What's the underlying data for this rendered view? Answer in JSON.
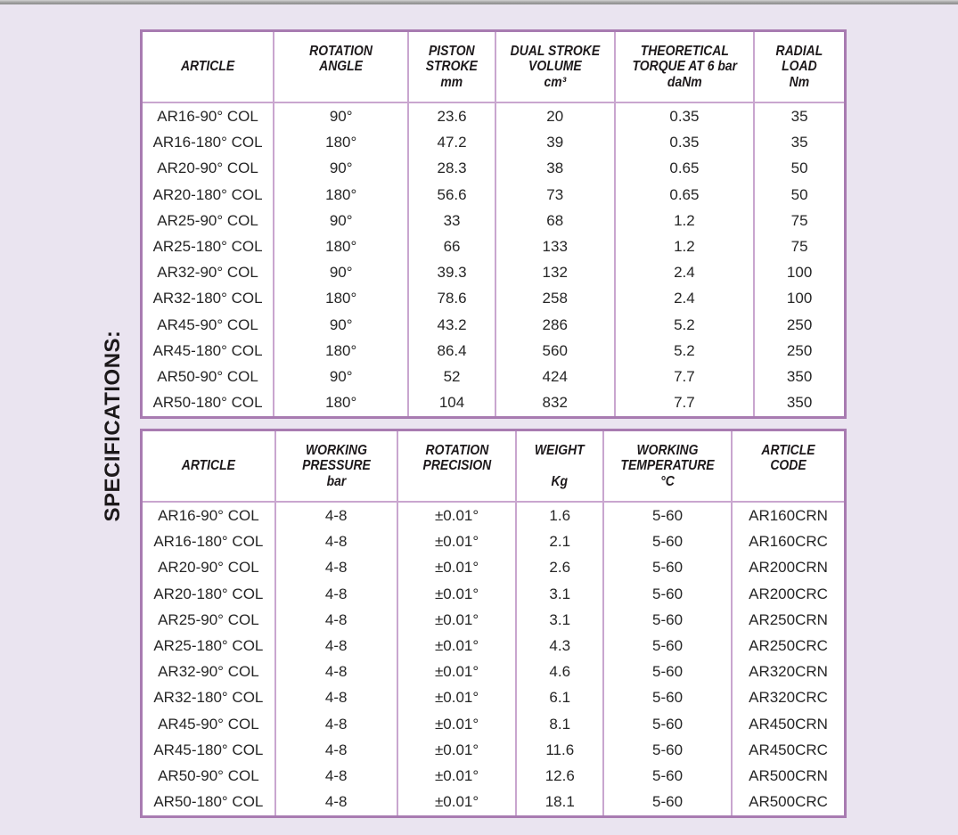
{
  "page": {
    "section_label": "SPECIFICATIONS:",
    "colors": {
      "background": "#eae4f0",
      "table_border": "#a87bb1",
      "grid_line": "#c9a6cf",
      "top_rule": "#a8a8a8",
      "header_text": "#1d191b",
      "body_text": "#262626"
    }
  },
  "tables": [
    {
      "title": "dimensions-and-performance",
      "columns": [
        {
          "lines": [
            "",
            "ARTICLE",
            ""
          ],
          "width": 18.7
        },
        {
          "lines": [
            "ROTATION",
            "ANGLE",
            ""
          ],
          "width": 19.2
        },
        {
          "lines": [
            "PISTON",
            "STROKE",
            "mm"
          ],
          "width": 12.4
        },
        {
          "lines": [
            "DUAL STROKE",
            "VOLUME",
            "cm³"
          ],
          "width": 17.0
        },
        {
          "lines": [
            "THEORETICAL",
            "TORQUE AT 6 bar",
            "daNm"
          ],
          "width": 19.9
        },
        {
          "lines": [
            "RADIAL",
            "LOAD",
            "Nm"
          ],
          "width": 12.8
        }
      ],
      "rows": [
        [
          "AR16-90° COL",
          "90°",
          "23.6",
          "20",
          "0.35",
          "35"
        ],
        [
          "AR16-180° COL",
          "180°",
          "47.2",
          "39",
          "0.35",
          "35"
        ],
        [
          "AR20-90° COL",
          "90°",
          "28.3",
          "38",
          "0.65",
          "50"
        ],
        [
          "AR20-180° COL",
          "180°",
          "56.6",
          "73",
          "0.65",
          "50"
        ],
        [
          "AR25-90° COL",
          "90°",
          "33",
          "68",
          "1.2",
          "75"
        ],
        [
          "AR25-180° COL",
          "180°",
          "66",
          "133",
          "1.2",
          "75"
        ],
        [
          "AR32-90° COL",
          "90°",
          "39.3",
          "132",
          "2.4",
          "100"
        ],
        [
          "AR32-180° COL",
          "180°",
          "78.6",
          "258",
          "2.4",
          "100"
        ],
        [
          "AR45-90° COL",
          "90°",
          "43.2",
          "286",
          "5.2",
          "250"
        ],
        [
          "AR45-180° COL",
          "180°",
          "86.4",
          "560",
          "5.2",
          "250"
        ],
        [
          "AR50-90° COL",
          "90°",
          "52",
          "424",
          "7.7",
          "350"
        ],
        [
          "AR50-180° COL",
          "180°",
          "104",
          "832",
          "7.7",
          "350"
        ]
      ]
    },
    {
      "title": "operating-conditions-and-codes",
      "columns": [
        {
          "lines": [
            "",
            "ARTICLE",
            ""
          ],
          "width": 18.9
        },
        {
          "lines": [
            "WORKING",
            "PRESSURE",
            "bar"
          ],
          "width": 17.4
        },
        {
          "lines": [
            "ROTATION",
            "PRECISION",
            ""
          ],
          "width": 17.0
        },
        {
          "lines": [
            "WEIGHT",
            "",
            "Kg"
          ],
          "width": 12.4
        },
        {
          "lines": [
            "WORKING",
            "TEMPERATURE",
            "°C"
          ],
          "width": 18.3
        },
        {
          "lines": [
            "ARTICLE",
            "CODE",
            ""
          ],
          "width": 16.0
        }
      ],
      "rows": [
        [
          "AR16-90° COL",
          "4-8",
          "±0.01°",
          "1.6",
          "5-60",
          "AR160CRN"
        ],
        [
          "AR16-180° COL",
          "4-8",
          "±0.01°",
          "2.1",
          "5-60",
          "AR160CRC"
        ],
        [
          "AR20-90° COL",
          "4-8",
          "±0.01°",
          "2.6",
          "5-60",
          "AR200CRN"
        ],
        [
          "AR20-180° COL",
          "4-8",
          "±0.01°",
          "3.1",
          "5-60",
          "AR200CRC"
        ],
        [
          "AR25-90° COL",
          "4-8",
          "±0.01°",
          "3.1",
          "5-60",
          "AR250CRN"
        ],
        [
          "AR25-180° COL",
          "4-8",
          "±0.01°",
          "4.3",
          "5-60",
          "AR250CRC"
        ],
        [
          "AR32-90° COL",
          "4-8",
          "±0.01°",
          "4.6",
          "5-60",
          "AR320CRN"
        ],
        [
          "AR32-180° COL",
          "4-8",
          "±0.01°",
          "6.1",
          "5-60",
          "AR320CRC"
        ],
        [
          "AR45-90° COL",
          "4-8",
          "±0.01°",
          "8.1",
          "5-60",
          "AR450CRN"
        ],
        [
          "AR45-180° COL",
          "4-8",
          "±0.01°",
          "11.6",
          "5-60",
          "AR450CRC"
        ],
        [
          "AR50-90° COL",
          "4-8",
          "±0.01°",
          "12.6",
          "5-60",
          "AR500CRN"
        ],
        [
          "AR50-180° COL",
          "4-8",
          "±0.01°",
          "18.1",
          "5-60",
          "AR500CRC"
        ]
      ]
    }
  ]
}
